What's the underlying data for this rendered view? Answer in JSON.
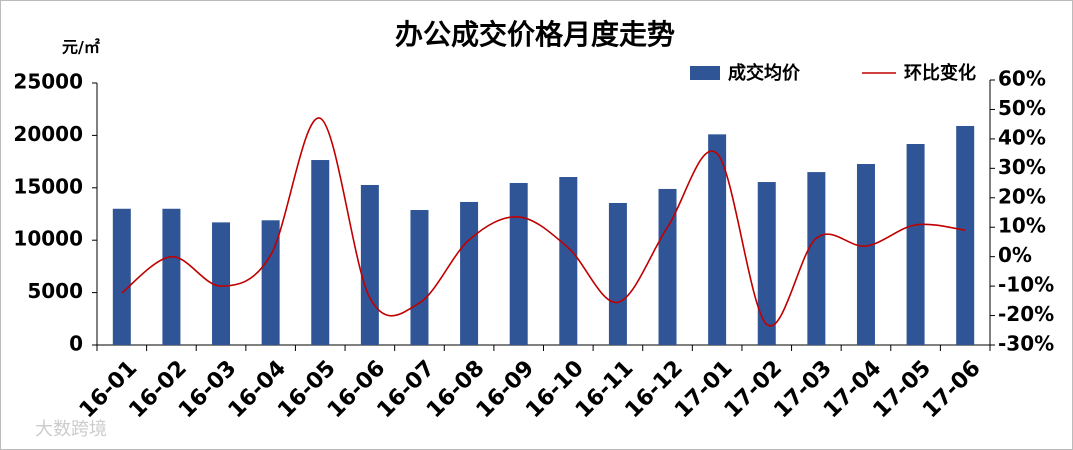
{
  "chart_data": {
    "type": "bar-line",
    "title": "办公成交价格月度走势",
    "y_label": "元/㎡",
    "watermark": "大数跨境",
    "categories": [
      "16-01",
      "16-02",
      "16-03",
      "16-04",
      "16-05",
      "16-06",
      "16-07",
      "16-08",
      "16-09",
      "16-10",
      "16-11",
      "16-12",
      "17-01",
      "17-02",
      "17-03",
      "17-04",
      "17-05",
      "17-06"
    ],
    "series": [
      {
        "name": "成交均价",
        "type": "bar",
        "color": "#2f5597",
        "values": [
          13000,
          13000,
          11700,
          11900,
          17650,
          15270,
          12880,
          13650,
          15460,
          16030,
          13550,
          14890,
          20100,
          15550,
          16500,
          17270,
          19180,
          20900
        ]
      },
      {
        "name": "环比变化",
        "type": "line",
        "axis": "y2",
        "color": "#c00000",
        "values": [
          -12.3,
          0,
          -10,
          0.5,
          47,
          -14,
          -15.7,
          5.7,
          13.5,
          3,
          -15.5,
          10,
          35,
          -23,
          6.3,
          3.6,
          10.8,
          9
        ]
      }
    ],
    "ylim": [
      0,
      25000
    ],
    "yticks": [
      0,
      5000,
      10000,
      15000,
      20000,
      25000
    ],
    "y2lim": [
      -30,
      60
    ],
    "y2ticks": [
      {
        "value": -30,
        "label": "-30%"
      },
      {
        "value": -20,
        "label": "-20%"
      },
      {
        "value": -10,
        "label": "-10%"
      },
      {
        "value": 0,
        "label": "0%"
      },
      {
        "value": 10,
        "label": "10%"
      },
      {
        "value": 20,
        "label": "20%"
      },
      {
        "value": 30,
        "label": "30%"
      },
      {
        "value": 40,
        "label": "40%"
      },
      {
        "value": 50,
        "label": "50%"
      },
      {
        "value": 60,
        "label": "60%"
      }
    ],
    "grid": false,
    "legend": "top-right"
  }
}
